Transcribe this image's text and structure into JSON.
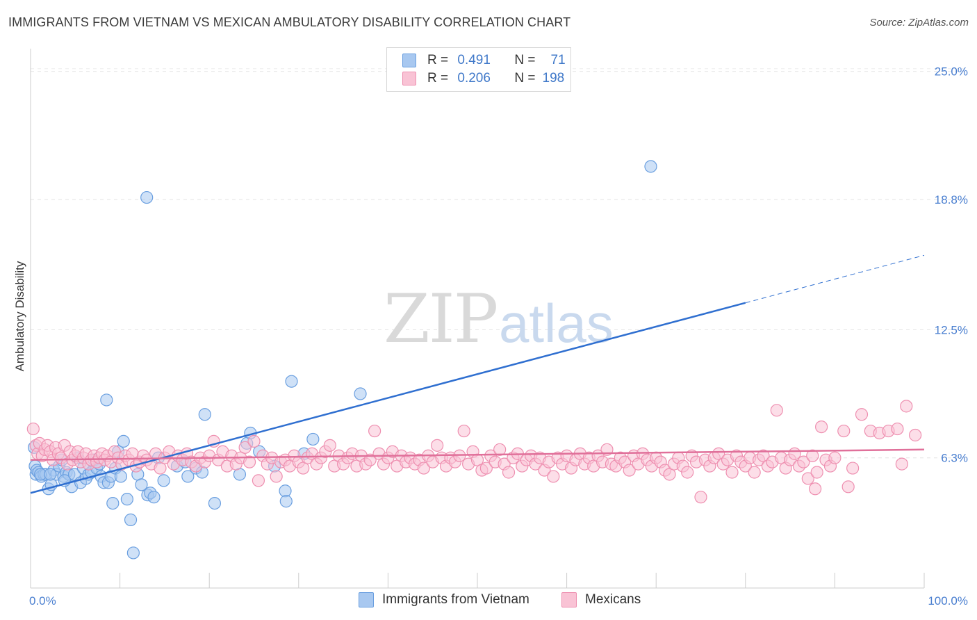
{
  "title": "IMMIGRANTS FROM VIETNAM VS MEXICAN AMBULATORY DISABILITY CORRELATION CHART",
  "source": "Source: ZipAtlas.com",
  "watermark": {
    "zip": "ZIP",
    "atlas": "atlas"
  },
  "legend": {
    "rows": [
      {
        "r_label": "R =",
        "r_value": "0.491",
        "n_label": "N =",
        "n_value": "71",
        "color": "#a8c8f0",
        "border": "#6a9fe0"
      },
      {
        "r_label": "R =",
        "r_value": "0.206",
        "n_label": "N =",
        "n_value": "198",
        "color": "#f9c3d5",
        "border": "#ee8fb0"
      }
    ]
  },
  "chart_data": {
    "type": "scatter",
    "title": "IMMIGRANTS FROM VIETNAM VS MEXICAN AMBULATORY DISABILITY CORRELATION CHART",
    "xlabel": "",
    "ylabel": "Ambulatory Disability",
    "xlim": [
      0,
      100
    ],
    "ylim": [
      0,
      26.1
    ],
    "y_ticks": [
      6.3,
      12.5,
      18.8,
      25.0
    ],
    "y_tick_labels": [
      "6.3%",
      "12.5%",
      "18.8%",
      "25.0%"
    ],
    "x_tick_labels": [
      "0.0%",
      "100.0%"
    ],
    "grid": "horizontal dashed",
    "legend_position": "top-center",
    "series": [
      {
        "name": "Immigrants from Vietnam",
        "color": "#6a9fe0",
        "fill": "#a8c8f0",
        "trend": {
          "x0": 0,
          "y0": 4.6,
          "x1": 80,
          "y1": 13.8,
          "style": "solid"
        },
        "points": [
          [
            0.4,
            6.8
          ],
          [
            0.5,
            5.9
          ],
          [
            0.6,
            5.5
          ],
          [
            0.7,
            5.7
          ],
          [
            0.9,
            5.6
          ],
          [
            1.2,
            5.4
          ],
          [
            1.5,
            5.5
          ],
          [
            1.7,
            5.5
          ],
          [
            2.0,
            4.8
          ],
          [
            2.3,
            5.0
          ],
          [
            2.6,
            5.7
          ],
          [
            2.9,
            5.5
          ],
          [
            3.2,
            5.9
          ],
          [
            3.5,
            6.2
          ],
          [
            3.7,
            5.4
          ],
          [
            4.0,
            5.6
          ],
          [
            4.3,
            5.5
          ],
          [
            4.6,
            4.9
          ],
          [
            4.9,
            5.5
          ],
          [
            5.3,
            6.3
          ],
          [
            5.6,
            5.1
          ],
          [
            5.9,
            5.8
          ],
          [
            6.2,
            5.3
          ],
          [
            6.5,
            5.5
          ],
          [
            6.8,
            5.6
          ],
          [
            7.1,
            6.2
          ],
          [
            7.4,
            5.8
          ],
          [
            7.7,
            6.0
          ],
          [
            7.9,
            5.4
          ],
          [
            8.2,
            5.1
          ],
          [
            8.5,
            9.1
          ],
          [
            8.7,
            5.1
          ],
          [
            9.0,
            5.4
          ],
          [
            9.2,
            4.1
          ],
          [
            9.5,
            5.8
          ],
          [
            9.8,
            6.6
          ],
          [
            10.1,
            5.4
          ],
          [
            10.4,
            7.1
          ],
          [
            10.8,
            4.3
          ],
          [
            11.2,
            3.3
          ],
          [
            11.5,
            1.7
          ],
          [
            12.0,
            5.5
          ],
          [
            12.4,
            5.0
          ],
          [
            13.0,
            18.9
          ],
          [
            13.1,
            4.5
          ],
          [
            13.4,
            4.6
          ],
          [
            13.8,
            4.4
          ],
          [
            14.3,
            6.3
          ],
          [
            14.9,
            5.2
          ],
          [
            16.4,
            5.9
          ],
          [
            17.3,
            6.1
          ],
          [
            17.6,
            5.4
          ],
          [
            18.5,
            5.8
          ],
          [
            19.2,
            5.6
          ],
          [
            19.5,
            8.4
          ],
          [
            20.6,
            4.1
          ],
          [
            23.4,
            5.5
          ],
          [
            24.2,
            7.0
          ],
          [
            24.6,
            7.5
          ],
          [
            25.6,
            6.6
          ],
          [
            27.3,
            5.9
          ],
          [
            28.5,
            4.7
          ],
          [
            28.6,
            4.2
          ],
          [
            29.2,
            10.0
          ],
          [
            30.6,
            6.5
          ],
          [
            31.6,
            7.2
          ],
          [
            36.9,
            9.4
          ],
          [
            69.4,
            20.4
          ],
          [
            1.1,
            5.5
          ],
          [
            2.2,
            5.5
          ],
          [
            3.8,
            5.2
          ]
        ]
      },
      {
        "name": "Mexicans",
        "color": "#ee8fb0",
        "fill": "#f9c3d5",
        "trend": {
          "x0": 0,
          "y0": 6.2,
          "x1": 100,
          "y1": 6.7,
          "style": "solid"
        },
        "points": [
          [
            0.3,
            7.7
          ],
          [
            0.6,
            6.9
          ],
          [
            0.8,
            6.5
          ],
          [
            1.0,
            7.0
          ],
          [
            1.3,
            6.4
          ],
          [
            1.6,
            6.7
          ],
          [
            1.9,
            6.9
          ],
          [
            2.2,
            6.6
          ],
          [
            2.5,
            6.2
          ],
          [
            2.8,
            6.8
          ],
          [
            3.1,
            6.5
          ],
          [
            3.4,
            6.3
          ],
          [
            3.8,
            6.9
          ],
          [
            4.1,
            6.0
          ],
          [
            4.4,
            6.6
          ],
          [
            4.7,
            6.2
          ],
          [
            5.0,
            6.4
          ],
          [
            5.3,
            6.6
          ],
          [
            5.6,
            6.1
          ],
          [
            5.9,
            6.3
          ],
          [
            6.2,
            6.5
          ],
          [
            6.5,
            6.0
          ],
          [
            6.8,
            6.2
          ],
          [
            7.1,
            6.4
          ],
          [
            7.4,
            6.1
          ],
          [
            7.7,
            6.3
          ],
          [
            8.0,
            6.5
          ],
          [
            8.3,
            6.2
          ],
          [
            8.6,
            6.4
          ],
          [
            9.0,
            6.1
          ],
          [
            9.4,
            6.6
          ],
          [
            9.8,
            6.3
          ],
          [
            10.2,
            6.0
          ],
          [
            10.6,
            6.4
          ],
          [
            11.0,
            6.2
          ],
          [
            11.4,
            6.5
          ],
          [
            11.8,
            5.9
          ],
          [
            12.2,
            6.1
          ],
          [
            12.6,
            6.4
          ],
          [
            13.0,
            6.2
          ],
          [
            13.5,
            6.0
          ],
          [
            14.0,
            6.5
          ],
          [
            14.5,
            5.8
          ],
          [
            15.0,
            6.3
          ],
          [
            15.5,
            6.6
          ],
          [
            16.0,
            6.0
          ],
          [
            16.5,
            6.4
          ],
          [
            17.0,
            6.2
          ],
          [
            17.5,
            6.5
          ],
          [
            18.0,
            6.1
          ],
          [
            18.5,
            5.9
          ],
          [
            19.0,
            6.3
          ],
          [
            19.5,
            6.1
          ],
          [
            20.0,
            6.4
          ],
          [
            20.5,
            7.1
          ],
          [
            21.0,
            6.2
          ],
          [
            21.5,
            6.6
          ],
          [
            22.0,
            5.9
          ],
          [
            22.5,
            6.4
          ],
          [
            23.0,
            6.0
          ],
          [
            23.5,
            6.3
          ],
          [
            24.0,
            6.8
          ],
          [
            24.5,
            6.1
          ],
          [
            25.0,
            7.1
          ],
          [
            25.5,
            5.2
          ],
          [
            26.0,
            6.4
          ],
          [
            26.5,
            6.0
          ],
          [
            27.0,
            6.3
          ],
          [
            27.5,
            5.4
          ],
          [
            28.0,
            6.1
          ],
          [
            28.5,
            6.2
          ],
          [
            29.0,
            5.9
          ],
          [
            29.5,
            6.4
          ],
          [
            30.0,
            6.1
          ],
          [
            30.5,
            5.8
          ],
          [
            31.0,
            6.3
          ],
          [
            31.5,
            6.5
          ],
          [
            32.0,
            6.0
          ],
          [
            32.5,
            6.3
          ],
          [
            33.0,
            6.6
          ],
          [
            33.5,
            6.9
          ],
          [
            34.0,
            5.9
          ],
          [
            34.5,
            6.4
          ],
          [
            35.0,
            6.0
          ],
          [
            35.5,
            6.3
          ],
          [
            36.0,
            6.5
          ],
          [
            36.5,
            5.9
          ],
          [
            37.0,
            6.4
          ],
          [
            37.5,
            6.0
          ],
          [
            38.0,
            6.2
          ],
          [
            38.5,
            7.6
          ],
          [
            39.0,
            6.5
          ],
          [
            39.5,
            6.0
          ],
          [
            40.0,
            6.3
          ],
          [
            40.5,
            6.6
          ],
          [
            41.0,
            5.9
          ],
          [
            41.5,
            6.4
          ],
          [
            42.0,
            6.1
          ],
          [
            42.5,
            6.3
          ],
          [
            43.0,
            6.0
          ],
          [
            43.5,
            6.2
          ],
          [
            44.0,
            5.8
          ],
          [
            44.5,
            6.4
          ],
          [
            45.0,
            6.1
          ],
          [
            45.5,
            6.9
          ],
          [
            46.0,
            6.3
          ],
          [
            46.5,
            5.9
          ],
          [
            47.0,
            6.3
          ],
          [
            47.5,
            6.1
          ],
          [
            48.0,
            6.4
          ],
          [
            48.5,
            7.6
          ],
          [
            49.0,
            6.0
          ],
          [
            49.5,
            6.6
          ],
          [
            50.0,
            6.2
          ],
          [
            50.5,
            5.7
          ],
          [
            51.0,
            5.8
          ],
          [
            51.5,
            6.4
          ],
          [
            52.0,
            6.1
          ],
          [
            52.5,
            6.7
          ],
          [
            53.0,
            6.0
          ],
          [
            53.5,
            5.6
          ],
          [
            54.0,
            6.3
          ],
          [
            54.5,
            6.5
          ],
          [
            55.0,
            5.9
          ],
          [
            55.5,
            6.2
          ],
          [
            56.0,
            6.4
          ],
          [
            56.5,
            6.0
          ],
          [
            57.0,
            6.3
          ],
          [
            57.5,
            5.7
          ],
          [
            58.0,
            6.1
          ],
          [
            58.5,
            5.4
          ],
          [
            59.0,
            6.3
          ],
          [
            59.5,
            6.0
          ],
          [
            60.0,
            6.4
          ],
          [
            60.5,
            5.8
          ],
          [
            61.0,
            6.2
          ],
          [
            61.5,
            6.5
          ],
          [
            62.0,
            6.0
          ],
          [
            62.5,
            6.3
          ],
          [
            63.0,
            5.9
          ],
          [
            63.5,
            6.4
          ],
          [
            64.0,
            6.1
          ],
          [
            64.5,
            6.7
          ],
          [
            65.0,
            6.0
          ],
          [
            65.5,
            5.9
          ],
          [
            66.0,
            6.3
          ],
          [
            66.5,
            6.1
          ],
          [
            67.0,
            5.7
          ],
          [
            67.5,
            6.4
          ],
          [
            68.0,
            6.0
          ],
          [
            68.5,
            6.5
          ],
          [
            69.0,
            6.2
          ],
          [
            69.5,
            5.9
          ],
          [
            70.0,
            6.3
          ],
          [
            70.5,
            6.1
          ],
          [
            71.0,
            5.7
          ],
          [
            71.5,
            5.5
          ],
          [
            72.0,
            6.0
          ],
          [
            72.5,
            6.3
          ],
          [
            73.0,
            5.9
          ],
          [
            73.5,
            5.6
          ],
          [
            74.0,
            6.4
          ],
          [
            74.5,
            6.1
          ],
          [
            75.0,
            4.4
          ],
          [
            75.5,
            6.2
          ],
          [
            76.0,
            5.9
          ],
          [
            76.5,
            6.3
          ],
          [
            77.0,
            6.5
          ],
          [
            77.5,
            6.0
          ],
          [
            78.0,
            6.2
          ],
          [
            78.5,
            5.6
          ],
          [
            79.0,
            6.4
          ],
          [
            79.5,
            6.1
          ],
          [
            80.0,
            5.9
          ],
          [
            80.5,
            6.3
          ],
          [
            81.0,
            5.6
          ],
          [
            81.5,
            6.2
          ],
          [
            82.0,
            6.4
          ],
          [
            82.5,
            5.9
          ],
          [
            83.0,
            6.1
          ],
          [
            83.5,
            8.6
          ],
          [
            84.0,
            6.3
          ],
          [
            84.5,
            5.8
          ],
          [
            85.0,
            6.2
          ],
          [
            85.5,
            6.5
          ],
          [
            86.0,
            5.9
          ],
          [
            86.5,
            6.1
          ],
          [
            87.0,
            5.3
          ],
          [
            87.5,
            6.4
          ],
          [
            88.0,
            5.6
          ],
          [
            88.5,
            7.8
          ],
          [
            89.0,
            6.2
          ],
          [
            89.5,
            5.9
          ],
          [
            90.0,
            6.3
          ],
          [
            91.0,
            7.6
          ],
          [
            92.0,
            5.8
          ],
          [
            93.0,
            8.4
          ],
          [
            94.0,
            7.6
          ],
          [
            95.0,
            7.5
          ],
          [
            96.0,
            7.6
          ],
          [
            97.0,
            7.7
          ],
          [
            98.0,
            8.8
          ],
          [
            99.0,
            7.4
          ],
          [
            97.5,
            6.0
          ],
          [
            91.5,
            4.9
          ],
          [
            87.8,
            4.8
          ]
        ]
      }
    ]
  },
  "axis_labels": {
    "x_min": "0.0%",
    "x_max": "100.0%",
    "ylabel": "Ambulatory Disability"
  }
}
